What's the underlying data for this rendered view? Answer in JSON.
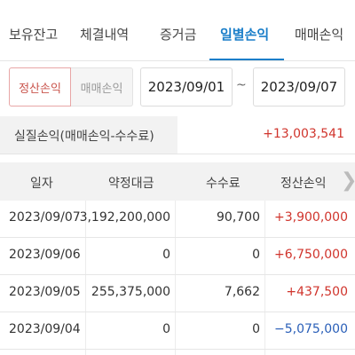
{
  "tabs": [
    "보유잔고",
    "체결내역",
    "증거금",
    "일별손익",
    "매매손익"
  ],
  "filter": {
    "toggle_on": "정산손익",
    "toggle_off": "매매손익",
    "date_from": "2023/09/01",
    "separator": "~",
    "date_to": "2023/09/07"
  },
  "summary": {
    "label": "실질손익(매매손익-수수료)",
    "value": "+13,003,541"
  },
  "table": {
    "headers": [
      "일자",
      "약정대금",
      "수수료",
      "정산손익"
    ],
    "rows": [
      {
        "date": "2023/09/07",
        "amount": "3,192,200,000",
        "fee": "90,700",
        "pnl": "+3,900,000"
      },
      {
        "date": "2023/09/06",
        "amount": "0",
        "fee": "0",
        "pnl": "+6,750,000"
      },
      {
        "date": "2023/09/05",
        "amount": "255,375,000",
        "fee": "7,662",
        "pnl": "+437,500"
      },
      {
        "date": "2023/09/04",
        "amount": "0",
        "fee": "0",
        "pnl": "−5,075,000"
      }
    ]
  },
  "colors": {
    "accent": "#1a7ec9",
    "positive": "#d0342c",
    "negative": "#2a5fb8"
  }
}
